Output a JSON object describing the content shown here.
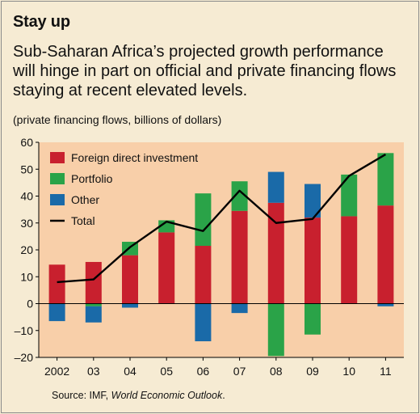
{
  "title": "Stay up",
  "subtitle": "Sub-Saharan Africa’s projected growth performance will hinge in part on official and private financing flows staying at recent elevated levels.",
  "unit_note": "(private financing flows, billions of dollars)",
  "source_prefix": "Source: IMF, ",
  "source_title": "World Economic Outlook",
  "source_suffix": ".",
  "colors": {
    "plot_background": "#f8cfa9",
    "fdi": "#c8202e",
    "portfolio": "#2aa348",
    "other": "#1a6aa8",
    "total": "#000000"
  },
  "chart_data": {
    "type": "bar",
    "stacked": true,
    "categories": [
      "2002",
      "03",
      "04",
      "05",
      "06",
      "07",
      "08",
      "09",
      "10",
      "11"
    ],
    "ylim": [
      -20,
      60
    ],
    "yticks": [
      -20,
      -10,
      0,
      10,
      20,
      30,
      40,
      50,
      60
    ],
    "grid": false,
    "legend_position": "top-left",
    "series": [
      {
        "name": "Foreign direct investment",
        "color": "#c8202e",
        "values": [
          14.5,
          15.5,
          18,
          26.5,
          21.5,
          34.5,
          37.5,
          32,
          32.5,
          36.5
        ]
      },
      {
        "name": "Portfolio",
        "color": "#2aa348",
        "values": [
          0,
          -1,
          5,
          4.5,
          19.5,
          11,
          -19.5,
          -11.5,
          15.5,
          19.5
        ]
      },
      {
        "name": "Other",
        "color": "#1a6aa8",
        "values": [
          -6.5,
          -6,
          -1.5,
          0,
          -14,
          -3.5,
          11.5,
          12.5,
          0,
          -1
        ]
      }
    ],
    "line_series": {
      "name": "Total",
      "color": "#000000",
      "values": [
        8,
        9,
        21,
        30.5,
        27,
        42,
        30,
        31.5,
        47.5,
        55.5
      ]
    }
  }
}
